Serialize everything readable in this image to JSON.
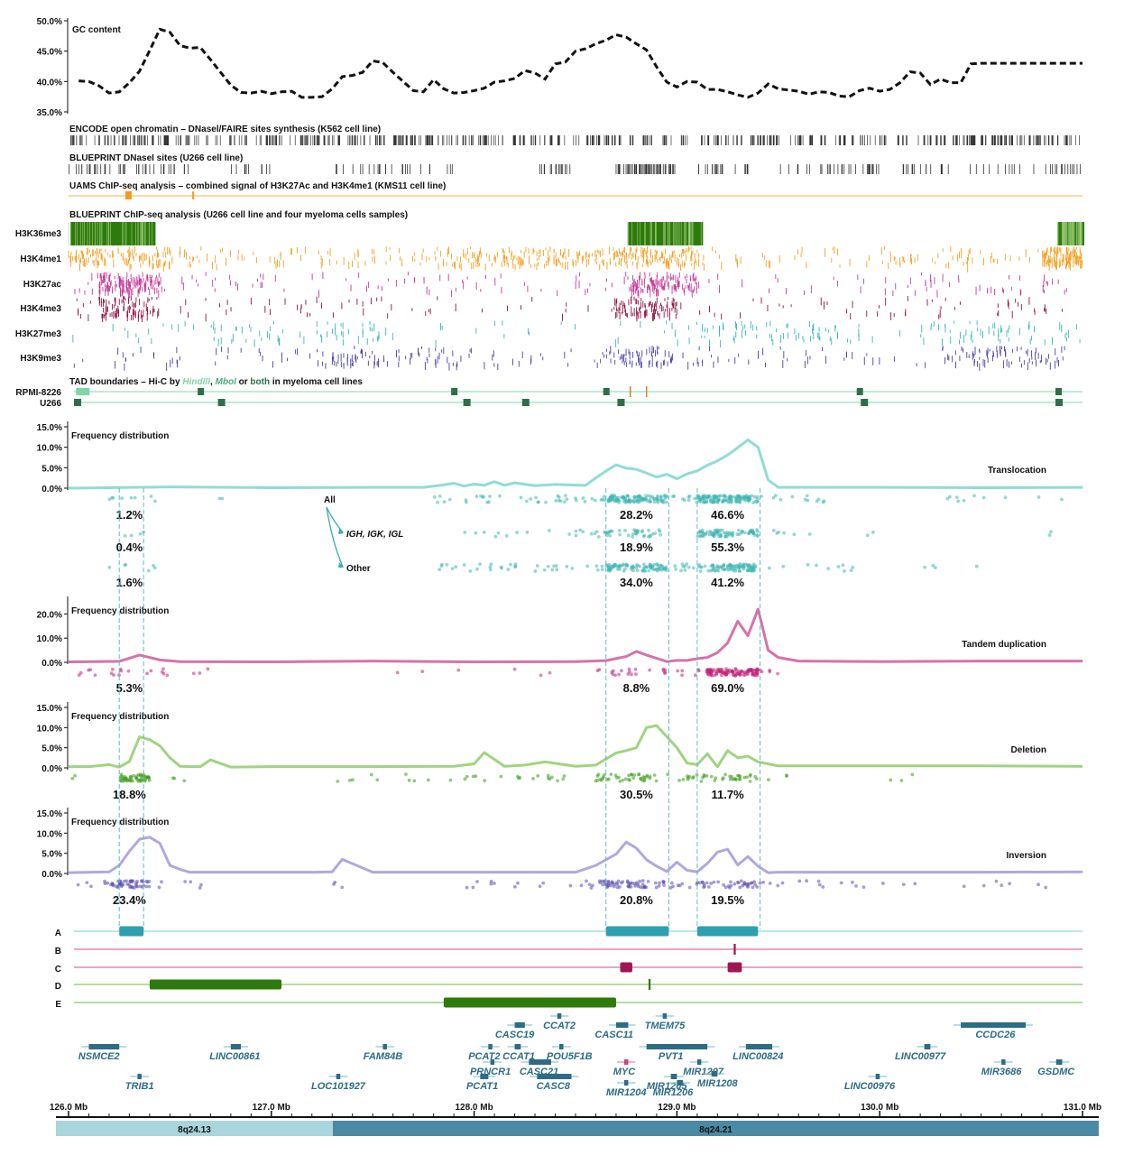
{
  "colors": {
    "translocation": "#3fb6b2",
    "translocation_line": "#8fdcd8",
    "tandem": "#c2237a",
    "tandem_line": "#d772a8",
    "deletion": "#3c9a18",
    "deletion_line": "#9fd47f",
    "inversion": "#5b4fb5",
    "inversion_line": "#b0a8de",
    "gene": "#2d6c84",
    "myc": "#b0104a",
    "h3k36me3": "#2f7a0c",
    "h3k4me1": "#f5a023",
    "h3k27ac": "#c4399a",
    "h3k4me3": "#8e1240",
    "h3k27me3": "#3ab6b6",
    "h3k9me3": "#4a3fa8",
    "tad_hind": "#7fd6a4",
    "tad_mbo": "#7fcf9a",
    "tad_both": "#2e6e4a"
  },
  "chart_data": [
    {
      "type": "line",
      "title": "GC content",
      "ylabel": "",
      "yticks": [
        "35.0%",
        "40.0%",
        "45.0%",
        "50.0%"
      ],
      "ylim": [
        35,
        50
      ],
      "xlim": [
        126.0,
        131.0
      ],
      "x": [
        126.05,
        126.1,
        126.15,
        126.2,
        126.25,
        126.3,
        126.35,
        126.4,
        126.45,
        126.5,
        126.55,
        126.6,
        126.65,
        126.7,
        126.75,
        126.8,
        126.85,
        126.9,
        126.95,
        127.0,
        127.05,
        127.1,
        127.15,
        127.2,
        127.25,
        127.3,
        127.35,
        127.4,
        127.45,
        127.5,
        127.55,
        127.6,
        127.65,
        127.7,
        127.75,
        127.8,
        127.85,
        127.9,
        127.95,
        128.0,
        128.05,
        128.1,
        128.15,
        128.2,
        128.25,
        128.3,
        128.35,
        128.4,
        128.45,
        128.5,
        128.55,
        128.6,
        128.65,
        128.7,
        128.75,
        128.8,
        128.85,
        128.9,
        128.95,
        129.0,
        129.05,
        129.1,
        129.15,
        129.2,
        129.25,
        129.3,
        129.35,
        129.4,
        129.45,
        129.5,
        129.55,
        129.6,
        129.65,
        129.7,
        129.75,
        129.8,
        129.85,
        129.9,
        129.95,
        130.0,
        130.05,
        130.1,
        130.15,
        130.2,
        130.25,
        130.3,
        130.35,
        130.4,
        130.45,
        130.5,
        130.55,
        130.6,
        130.65,
        130.7,
        130.75,
        130.8,
        130.85,
        130.9,
        130.95,
        131.0
      ],
      "values": [
        40.1,
        40.0,
        39.3,
        38.1,
        38.3,
        39.8,
        41.7,
        45.1,
        48.6,
        48.1,
        45.9,
        45.5,
        45.6,
        43.6,
        41.5,
        39.4,
        38.2,
        38.1,
        38.4,
        38.0,
        38.3,
        38.4,
        37.4,
        37.4,
        37.5,
        38.8,
        40.8,
        41.0,
        41.5,
        43.4,
        43.1,
        41.5,
        40.0,
        38.5,
        38.3,
        40.3,
        38.8,
        38.1,
        38.2,
        38.5,
        38.9,
        39.9,
        40.1,
        40.5,
        41.8,
        41.4,
        40.4,
        42.9,
        43.2,
        45.0,
        45.4,
        46.2,
        46.8,
        47.7,
        47.3,
        46.2,
        45.2,
        42.4,
        39.9,
        39.1,
        40.0,
        39.9,
        38.7,
        38.7,
        38.3,
        37.8,
        37.4,
        38.1,
        39.6,
        38.8,
        38.6,
        38.4,
        37.9,
        38.3,
        38.2,
        37.6,
        37.5,
        38.5,
        38.9,
        38.4,
        38.7,
        39.8,
        41.6,
        41.4,
        39.5,
        40.4,
        39.8,
        39.8,
        42.9,
        43.0,
        43.0,
        43.0,
        43.0,
        43.0,
        43.0,
        43.0,
        43.0,
        43.0,
        43.0,
        43.0
      ]
    },
    {
      "type": "line",
      "title": "Frequency distribution",
      "series_name": "Translocation",
      "yticks": [
        "0.0%",
        "5.0%",
        "10.0%",
        "15.0%"
      ],
      "ylim": [
        0,
        15
      ],
      "x": [
        126.0,
        126.5,
        127.0,
        127.5,
        127.75,
        127.85,
        127.9,
        127.95,
        128.0,
        128.05,
        128.1,
        128.15,
        128.2,
        128.3,
        128.4,
        128.55,
        128.6,
        128.65,
        128.7,
        128.75,
        128.8,
        128.85,
        128.9,
        128.95,
        129.0,
        129.05,
        129.1,
        129.15,
        129.2,
        129.25,
        129.3,
        129.35,
        129.4,
        129.45,
        129.5,
        129.6,
        130.0,
        130.5,
        131.0
      ],
      "values": [
        0.0,
        0.3,
        0.1,
        0.2,
        0.2,
        0.8,
        1.2,
        0.5,
        1.0,
        0.7,
        1.6,
        0.7,
        1.3,
        0.6,
        0.9,
        0.7,
        2.5,
        4.2,
        5.7,
        4.9,
        4.6,
        3.7,
        2.7,
        3.4,
        2.3,
        3.5,
        4.2,
        5.6,
        6.7,
        8.1,
        9.9,
        11.8,
        10.0,
        2.0,
        0.2,
        0.2,
        0.2,
        0.1,
        0.2
      ],
      "groups": [
        {
          "label": "All",
          "percentages": [
            "1.2%",
            "28.2%",
            "46.6%"
          ]
        },
        {
          "label": "IGH, IGK, IGL",
          "percentages": [
            "0.4%",
            "18.9%",
            "55.3%"
          ]
        },
        {
          "label": "Other",
          "percentages": [
            "1.6%",
            "34.0%",
            "41.2%"
          ]
        }
      ]
    },
    {
      "type": "line",
      "title": "Frequency distribution",
      "series_name": "Tandem duplication",
      "yticks": [
        "0.0%",
        "10.0%",
        "20.0%"
      ],
      "ylim": [
        0,
        25
      ],
      "x": [
        126.0,
        126.25,
        126.35,
        126.45,
        126.55,
        127.0,
        127.5,
        128.0,
        128.5,
        128.65,
        128.75,
        128.8,
        128.85,
        128.95,
        129.0,
        129.05,
        129.1,
        129.15,
        129.2,
        129.25,
        129.3,
        129.35,
        129.4,
        129.45,
        129.5,
        129.6,
        130.0,
        130.5,
        131.0
      ],
      "values": [
        0.2,
        0.4,
        3.0,
        1.0,
        0.3,
        0.2,
        0.5,
        0.2,
        0.3,
        0.7,
        2.4,
        4.5,
        3.0,
        0.3,
        0.8,
        0.8,
        1.5,
        2.0,
        4.0,
        8.0,
        17.0,
        11.0,
        22.0,
        5.0,
        2.0,
        0.5,
        0.3,
        0.5,
        0.5
      ],
      "percentages": [
        "5.3%",
        "8.8%",
        "69.0%"
      ]
    },
    {
      "type": "line",
      "title": "Frequency distribution",
      "series_name": "Deletion",
      "yticks": [
        "0.0%",
        "5.0%",
        "10.0%",
        "15.0%"
      ],
      "ylim": [
        0,
        15
      ],
      "x": [
        126.0,
        126.1,
        126.2,
        126.25,
        126.3,
        126.35,
        126.4,
        126.45,
        126.5,
        126.55,
        126.6,
        126.65,
        126.7,
        126.8,
        127.0,
        127.5,
        127.9,
        128.0,
        128.05,
        128.15,
        128.25,
        128.35,
        128.5,
        128.6,
        128.7,
        128.75,
        128.8,
        128.85,
        128.9,
        129.0,
        129.05,
        129.1,
        129.15,
        129.2,
        129.25,
        129.3,
        129.35,
        129.4,
        129.5,
        129.7,
        130.0,
        130.5,
        131.0
      ],
      "values": [
        0.3,
        0.3,
        0.8,
        0.2,
        1.6,
        7.7,
        7.0,
        5.5,
        2.5,
        0.4,
        0.3,
        0.3,
        2.0,
        0.2,
        0.3,
        0.3,
        0.4,
        1.0,
        3.8,
        0.4,
        0.7,
        1.5,
        0.4,
        0.7,
        3.7,
        4.3,
        5.0,
        10.0,
        10.5,
        5.0,
        1.2,
        0.8,
        3.5,
        0.3,
        4.3,
        2.5,
        2.9,
        1.5,
        0.5,
        0.5,
        0.5,
        0.5,
        0.4
      ],
      "percentages": [
        "18.8%",
        "30.5%",
        "11.7%"
      ]
    },
    {
      "type": "line",
      "title": "Frequency distribution",
      "series_name": "Inversion",
      "yticks": [
        "0.0%",
        "5.0%",
        "10.0%",
        "15.0%"
      ],
      "ylim": [
        0,
        15
      ],
      "x": [
        126.0,
        126.2,
        126.25,
        126.3,
        126.35,
        126.4,
        126.45,
        126.5,
        126.55,
        126.6,
        127.0,
        127.1,
        127.2,
        127.3,
        127.35,
        127.5,
        128.0,
        128.5,
        128.6,
        128.7,
        128.75,
        128.8,
        128.85,
        128.9,
        128.95,
        129.0,
        129.05,
        129.1,
        129.15,
        129.2,
        129.25,
        129.3,
        129.35,
        129.4,
        129.45,
        129.5,
        130.0,
        130.5,
        131.0
      ],
      "values": [
        0.2,
        0.4,
        2.0,
        5.5,
        8.5,
        9.0,
        7.5,
        2.0,
        1.0,
        0.3,
        0.3,
        0.3,
        0.3,
        0.4,
        3.5,
        0.3,
        0.3,
        0.3,
        2.0,
        4.8,
        7.8,
        6.3,
        3.4,
        1.8,
        0.5,
        2.8,
        0.8,
        0.4,
        2.5,
        5.3,
        6.0,
        2.1,
        4.2,
        1.8,
        0.2,
        0.3,
        0.3,
        0.3,
        0.4
      ],
      "percentages": [
        "23.4%",
        "20.8%",
        "19.5%"
      ]
    }
  ],
  "tracks": {
    "encode_title": "ENCODE open chromatin – DNasel/FAIRE sites synthesis (K562 cell line)",
    "blueprint_dnase_title": "BLUEPRINT DNaseI sites (U266 cell line)",
    "uams_title": "UAMS ChIP-seq analysis – combined signal of H3K27Ac and H3K4me1 (KMS11 cell line)",
    "blueprint_chip_title": "BLUEPRINT ChIP-seq analysis (U266 cell line and four myeloma cells samples)",
    "histone_marks": [
      "H3K36me3",
      "H3K4me1",
      "H3K27ac",
      "H3K4me3",
      "H3K27me3",
      "H3K9me3"
    ],
    "tad_title_parts": [
      "TAD boundaries – Hi-C by ",
      "HindIII",
      ", ",
      "MboI",
      " or ",
      "both",
      " in myeloma cell lines"
    ],
    "tad_rows": [
      "RPMI-8226",
      "U266"
    ]
  },
  "regions": {
    "labels": [
      "A",
      "B",
      "C",
      "D",
      "E"
    ],
    "items": [
      {
        "row": "A",
        "start": 126.25,
        "end": 126.37
      },
      {
        "row": "A",
        "start": 128.65,
        "end": 128.96
      },
      {
        "row": "A",
        "start": 129.1,
        "end": 129.4
      },
      {
        "row": "B",
        "start": 129.28,
        "end": 129.29
      },
      {
        "row": "C",
        "start": 128.72,
        "end": 128.78
      },
      {
        "row": "C",
        "start": 129.25,
        "end": 129.32
      },
      {
        "row": "D",
        "start": 126.4,
        "end": 127.05
      },
      {
        "row": "D",
        "start": 128.86,
        "end": 128.87
      },
      {
        "row": "E",
        "start": 127.85,
        "end": 128.7
      }
    ]
  },
  "genes": [
    {
      "name": "NSMCE2",
      "start": 126.1,
      "end": 126.25,
      "label_x": 126.15,
      "row": 0
    },
    {
      "name": "TRIB1",
      "start": 126.34,
      "end": 126.36,
      "label_x": 126.35,
      "row": 2
    },
    {
      "name": "LINC00861",
      "start": 126.8,
      "end": 126.85,
      "label_x": 126.82,
      "row": 0
    },
    {
      "name": "FAM84B",
      "start": 127.55,
      "end": 127.57,
      "label_x": 127.55,
      "row": 0
    },
    {
      "name": "LOC101927",
      "start": 127.32,
      "end": 127.34,
      "label_x": 127.33,
      "row": 2
    },
    {
      "name": "CASC19",
      "start": 128.2,
      "end": 128.25,
      "label_x": 128.2,
      "row": -1
    },
    {
      "name": "CCAT2",
      "start": 128.41,
      "end": 128.43,
      "label_x": 128.42,
      "row": -2
    },
    {
      "name": "PCAT2",
      "start": 128.07,
      "end": 128.09,
      "label_x": 128.05,
      "row": 0
    },
    {
      "name": "CCAT1",
      "start": 128.2,
      "end": 128.23,
      "label_x": 128.22,
      "row": 0
    },
    {
      "name": "POU5F1B",
      "start": 128.42,
      "end": 128.44,
      "label_x": 128.47,
      "row": 0
    },
    {
      "name": "PRNCR1",
      "start": 128.08,
      "end": 128.1,
      "label_x": 128.08,
      "row": 1
    },
    {
      "name": "CASC21",
      "start": 128.27,
      "end": 128.38,
      "label_x": 128.32,
      "row": 1
    },
    {
      "name": "PCAT1",
      "start": 128.03,
      "end": 128.07,
      "label_x": 128.04,
      "row": 2
    },
    {
      "name": "CASC8",
      "start": 128.31,
      "end": 128.48,
      "label_x": 128.39,
      "row": 2
    },
    {
      "name": "CASC11",
      "start": 128.7,
      "end": 128.76,
      "label_x": 128.69,
      "row": -1
    },
    {
      "name": "TMEM75",
      "start": 128.93,
      "end": 128.95,
      "label_x": 128.94,
      "row": -2
    },
    {
      "name": "PVT1",
      "start": 128.85,
      "end": 129.15,
      "label_x": 128.97,
      "row": 0
    },
    {
      "name": "MYC",
      "start": 128.74,
      "end": 128.76,
      "label_x": 128.74,
      "row": 1
    },
    {
      "name": "MIR1207",
      "start": 129.1,
      "end": 129.12,
      "label_x": 129.13,
      "row": 1
    },
    {
      "name": "MIR1205",
      "start": 128.97,
      "end": 129.0,
      "label_x": 128.95,
      "row": 2
    },
    {
      "name": "MIR1208",
      "start": 129.17,
      "end": 129.2,
      "label_x": 129.2,
      "row": 3
    },
    {
      "name": "MIR1204",
      "start": 128.74,
      "end": 128.76,
      "label_x": 128.75,
      "row": 4
    },
    {
      "name": "MIR1206",
      "start": 129.0,
      "end": 129.03,
      "label_x": 128.98,
      "row": 4
    },
    {
      "name": "LINC00824",
      "start": 129.34,
      "end": 129.47,
      "label_x": 129.4,
      "row": 0
    },
    {
      "name": "LINC00976",
      "start": 129.98,
      "end": 130.0,
      "label_x": 129.95,
      "row": 2
    },
    {
      "name": "LINC00977",
      "start": 130.22,
      "end": 130.25,
      "label_x": 130.2,
      "row": 0
    },
    {
      "name": "CCDC26",
      "start": 130.4,
      "end": 130.72,
      "label_x": 130.57,
      "row": -1
    },
    {
      "name": "MIR3686",
      "start": 130.6,
      "end": 130.62,
      "label_x": 130.6,
      "row": 1
    },
    {
      "name": "GSDMC",
      "start": 130.87,
      "end": 130.9,
      "label_x": 130.87,
      "row": 1
    }
  ],
  "x_axis": {
    "ticks": [
      "126.0 Mb",
      "127.0 Mb",
      "128.0 Mb",
      "129.0 Mb",
      "130.0 Mb",
      "131.0 Mb"
    ],
    "tick_values": [
      126.0,
      127.0,
      128.0,
      129.0,
      130.0,
      131.0
    ]
  },
  "bands": [
    {
      "name": "8q24.13",
      "start": 126.0,
      "end": 127.37
    },
    {
      "name": "8q24.21",
      "start": 127.37,
      "end": 131.0
    }
  ]
}
